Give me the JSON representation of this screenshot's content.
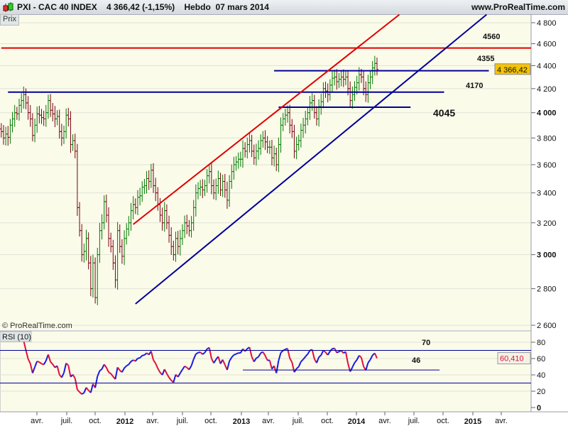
{
  "header": {
    "title": "PXI - CAC 40 INDEX",
    "last": "4 366,42 (-1,15%)",
    "period": "Hebdo",
    "date": "07 mars 2014",
    "site": "www.ProRealTime.com"
  },
  "panel_label": "Prix",
  "watermark": "© ProRealTime.com",
  "rsi_label": "RSI (10)",
  "colors": {
    "up": "#007a00",
    "down": "#7a0010",
    "channel": "#00009a",
    "resistance": "#e00000",
    "background": "#fbfbea"
  },
  "chart_data": {
    "type": "ohlc",
    "title": "PXI - CAC 40 INDEX, weekly",
    "start_week": "2010-12-03",
    "end_week": "2014-03-07",
    "closes": [
      3850,
      3800,
      3830,
      3805,
      3900,
      3950,
      4000,
      3990,
      4060,
      4100,
      4150,
      4080,
      4000,
      3950,
      3820,
      3900,
      3990,
      3980,
      3960,
      3950,
      4000,
      4100,
      4020,
      3990,
      3950,
      3970,
      3850,
      3800,
      3850,
      3980,
      3950,
      3750,
      3780,
      3700,
      3300,
      3150,
      3000,
      3020,
      3100,
      2950,
      2800,
      2950,
      2750,
      3000,
      3150,
      3200,
      3340,
      3250,
      3100,
      3050,
      2950,
      2850,
      3150,
      3050,
      2990,
      3100,
      3160,
      3200,
      3280,
      3320,
      3300,
      3370,
      3380,
      3440,
      3450,
      3500,
      3480,
      3560,
      3450,
      3400,
      3320,
      3250,
      3200,
      3280,
      3200,
      3120,
      3050,
      3000,
      3100,
      3050,
      3100,
      3150,
      3200,
      3180,
      3150,
      3200,
      3300,
      3400,
      3430,
      3440,
      3420,
      3450,
      3520,
      3550,
      3450,
      3400,
      3450,
      3500,
      3420,
      3480,
      3420,
      3350,
      3480,
      3550,
      3600,
      3620,
      3640,
      3640,
      3720,
      3700,
      3750,
      3780,
      3700,
      3650,
      3700,
      3720,
      3780,
      3800,
      3770,
      3730,
      3730,
      3650,
      3680,
      3600,
      3750,
      3900,
      3950,
      3980,
      4000,
      3900,
      3850,
      3700,
      3750,
      3780,
      3860,
      3900,
      3950,
      4000,
      4080,
      4100,
      4000,
      3950,
      4050,
      4090,
      4200,
      4180,
      4150,
      4230,
      4290,
      4300,
      4260,
      4280,
      4300,
      4280,
      4300,
      4200,
      4100,
      4150,
      4210,
      4250,
      4320,
      4300,
      4200,
      4150,
      4250,
      4300,
      4380,
      4420,
      4366.42
    ],
    "y_ticks": [
      "4 800",
      "4 600",
      "4 400",
      "4 200",
      "4 000",
      "3 800",
      "3 600",
      "3 400",
      "3 200",
      "3 000",
      "2 800",
      "2 600"
    ],
    "y_tick_values": [
      4800,
      4600,
      4400,
      4200,
      4000,
      3800,
      3600,
      3400,
      3200,
      3000,
      2800,
      2600
    ],
    "y_scale": "log",
    "x_ticks": [
      "avr.",
      "juil.",
      "oct.",
      "2012",
      "avr.",
      "juil.",
      "oct.",
      "2013",
      "avr.",
      "juil.",
      "oct.",
      "2014",
      "avr.",
      "juil.",
      "oct.",
      "2015",
      "avr."
    ],
    "last_price": "4 366,42",
    "levels": [
      {
        "label": "4560",
        "price": 4560,
        "from_week": 0,
        "to_week": 240,
        "color": "red"
      },
      {
        "label": "4355",
        "price": 4355,
        "from_week": 122,
        "to_week": 218,
        "color": "blue"
      },
      {
        "label": "4170",
        "price": 4170,
        "from_week": 3,
        "to_week": 198,
        "color": "blue"
      },
      {
        "label": "4045",
        "price": 4045,
        "from_week": 124,
        "to_week": 183,
        "color": "blue"
      }
    ],
    "trendlines": [
      {
        "name": "upper-channel",
        "color": "red",
        "from": {
          "week": 59,
          "price": 3190
        },
        "to": {
          "week": 178,
          "price": 4880
        }
      },
      {
        "name": "lower-channel",
        "color": "blue",
        "from": {
          "week": 60,
          "price": 2715
        },
        "to": {
          "week": 217,
          "price": 4880
        }
      }
    ],
    "rsi": {
      "period": 10,
      "last": "60,410",
      "ticks": [
        "80",
        "60",
        "40",
        "20",
        "0"
      ],
      "tick_values": [
        80,
        60,
        40,
        20,
        0
      ],
      "levels": [
        70,
        30
      ],
      "support": {
        "label": "46",
        "value": 46,
        "from_week": 108,
        "to_week": 196
      },
      "level_label": "70"
    }
  }
}
